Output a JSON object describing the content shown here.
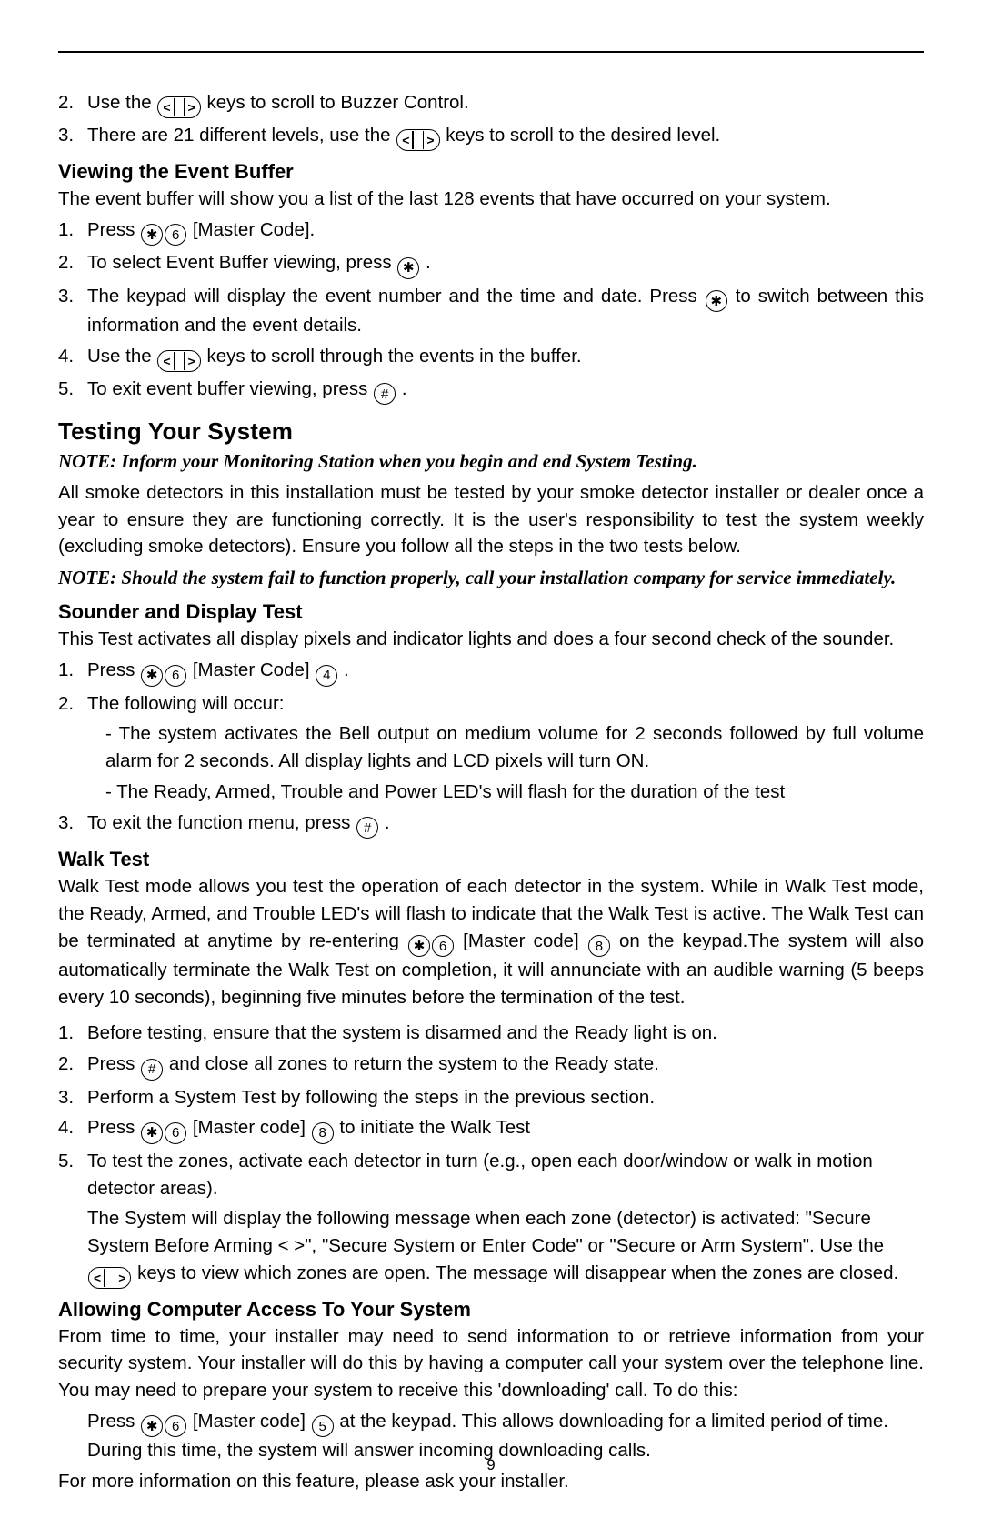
{
  "page_number": "9",
  "intro_items": [
    {
      "num": "2.",
      "pre": "Use the ",
      "keys": "arrows",
      "post": " keys to scroll to Buzzer Control."
    },
    {
      "num": "3.",
      "pre": "There are 21 different levels, use the ",
      "keys": "arrows",
      "post": " keys to scroll to the desired level."
    }
  ],
  "section_event": {
    "heading": "Viewing the Event Buffer",
    "intro": "The event buffer will show you a list of the last 128 events that have occurred on your system.",
    "items": {
      "i1_num": "1.",
      "i1_pre": "Press ",
      "i1_k1": "✱",
      "i1_k2": "6",
      "i1_post": " [Master Code].",
      "i2_num": "2.",
      "i2_pre": "To select Event Buffer viewing, press ",
      "i2_k1": "✱",
      "i2_post": ".",
      "i3_num": "3.",
      "i3_pre": "The keypad will display the event number and the time and date. Press ",
      "i3_k1": "✱",
      "i3_post": " to switch between this information and the event details.",
      "i4_num": "4.",
      "i4_pre": "Use the ",
      "i4_keys": "arrows",
      "i4_post": " keys to scroll through the events in the buffer.",
      "i5_num": "5.",
      "i5_pre": "To exit event buffer viewing, press ",
      "i5_k1": "#",
      "i5_post": "."
    }
  },
  "section_testing": {
    "heading": "Testing Your System",
    "note1": "NOTE: Inform your Monitoring Station when you begin and end System Testing.",
    "para1": "All smoke detectors in this installation must be tested by your smoke detector installer or dealer once a year to ensure they are functioning correctly. It is the user's responsibility to test the system weekly (excluding smoke detectors). Ensure you follow all the steps in the two tests below.",
    "note2": "NOTE: Should the system fail to function properly, call your installation company for service immediately."
  },
  "section_sounder": {
    "heading": "Sounder and Display Test",
    "intro": "This Test activates all display pixels and indicator lights and does a four second check of the sounder.",
    "i1_num": "1.",
    "i1_pre": "Press ",
    "i1_k1": "✱",
    "i1_k2": "6",
    "i1_mid": " [Master Code] ",
    "i1_k3": "4",
    "i1_post": ".",
    "i2_num": "2.",
    "i2_text": "The following will occur:",
    "sub1": "- The system activates the Bell output on medium volume for 2 seconds followed by full volume alarm for 2 seconds. All display lights and LCD pixels will turn ON.",
    "sub2": "- The Ready, Armed, Trouble and Power LED's will flash for the duration of the test",
    "i3_num": "3.",
    "i3_pre": "To exit the function menu, press ",
    "i3_k1": "#",
    "i3_post": "."
  },
  "section_walk": {
    "heading": "Walk Test",
    "intro_pre": "Walk Test mode allows you test the operation of each detector in the system. While in Walk Test mode, the Ready, Armed, and Trouble LED's will flash to indicate that the Walk Test is active. The Walk Test can be terminated at anytime by re-entering  ",
    "intro_k1": "✱",
    "intro_k2": "6",
    "intro_mid1": "  [Master code]  ",
    "intro_k3": "8",
    "intro_post": " on the keypad.The system will also automatically terminate the Walk Test on completion, it will annunciate with an audible warning (5 beeps every 10 seconds), beginning five minutes before the termination of the test.",
    "i1_num": "1.",
    "i1_text": "Before testing, ensure that the system is disarmed and the Ready light is on.",
    "i2_num": "2.",
    "i2_pre": "Press ",
    "i2_k1": "#",
    "i2_post": " and close all zones to return the system to the Ready state.",
    "i3_num": "3.",
    "i3_text": "Perform a System Test by following the steps in the previous section.",
    "i4_num": "4.",
    "i4_pre": "Press ",
    "i4_k1": "✱",
    "i4_k2": "6",
    "i4_mid": " [Master code] ",
    "i4_k3": "8",
    "i4_post": " to initiate the Walk Test",
    "i5_num": "5.",
    "i5_text": "To test the zones, activate each detector in turn (e.g., open each door/window or walk in motion detector areas).",
    "block_pre": "The System will display the following message when each zone (detector) is activated: \"Secure System Before Arming < >\", \"Secure System or Enter Code\" or \"Secure or Arm System\". Use the ",
    "block_keys": "arrows",
    "block_post": " keys to view which zones are open. The message will disappear when the zones are closed."
  },
  "section_computer": {
    "heading": "Allowing Computer Access To Your System",
    "intro": "From time to time, your installer may need to send information to or retrieve information from your security system. Your installer will do this by having a computer call your system over the telephone line. You may need to prepare your system to receive this 'downloading' call. To do this:",
    "block_pre": "Press ",
    "block_k1": "✱",
    "block_k2": "6",
    "block_mid1": " [Master code] ",
    "block_k3": "5",
    "block_post": " at the keypad. This allows downloading for a limited period of time. During this time, the system will answer incoming downloading calls.",
    "outro": "For more information on this feature, please ask your installer."
  }
}
